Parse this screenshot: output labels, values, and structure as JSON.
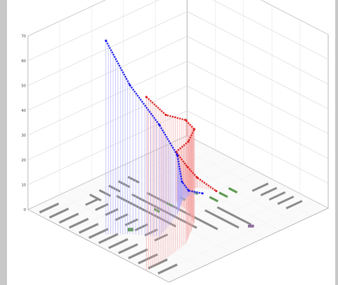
{
  "chart_data": {
    "type": "3d-line",
    "title": "",
    "zlabel": "",
    "zlim": [
      0,
      70
    ],
    "z_ticks": [
      "0",
      "10",
      "20",
      "30",
      "40",
      "50",
      "60",
      "70"
    ],
    "grid": true,
    "legend": "none",
    "series": [
      {
        "color": "#e02020",
        "drop_color": "#f4a0a0",
        "points": [
          [
            0.84,
            0.0,
            70
          ],
          [
            0.82,
            0.14,
            58
          ],
          [
            0.78,
            0.3,
            50
          ],
          [
            0.66,
            0.46,
            38
          ],
          [
            0.55,
            0.52,
            28
          ],
          [
            0.44,
            0.54,
            20
          ],
          [
            0.41,
            0.64,
            10
          ],
          [
            0.41,
            0.7,
            4
          ],
          [
            0.5,
            0.74,
            0
          ]
        ]
      },
      {
        "color": "#1a1af0",
        "drop_color": "#a8a8ff",
        "points": [
          [
            0.44,
            0.1,
            78
          ],
          [
            0.52,
            0.18,
            60
          ],
          [
            0.64,
            0.26,
            45
          ],
          [
            0.54,
            0.46,
            24
          ],
          [
            0.46,
            0.56,
            8
          ],
          [
            0.44,
            0.62,
            2
          ],
          [
            0.47,
            0.68,
            0
          ]
        ]
      }
    ],
    "floor_features": {
      "bar_color": "#8a8a8a",
      "green_color": "#5e9a52",
      "purple_color": "#8c6aa0"
    }
  }
}
